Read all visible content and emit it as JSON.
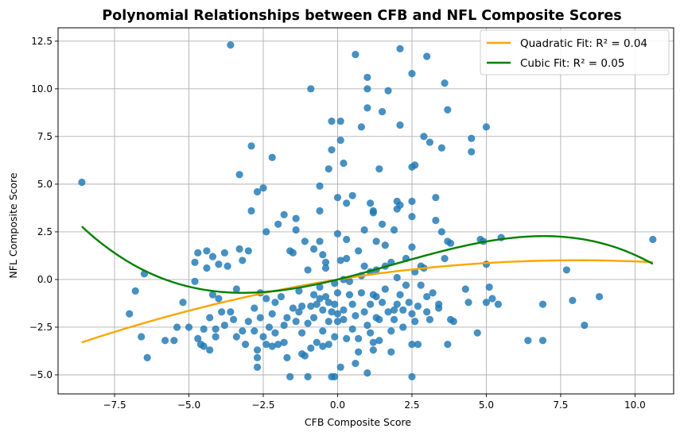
{
  "chart_data": {
    "type": "scatter",
    "title": "Polynomial Relationships between CFB and NFL Composite Scores",
    "xlabel": "CFB Composite Score",
    "ylabel": "NFL Composite Score",
    "xlim": [
      -9.4,
      11.3
    ],
    "ylim": [
      -6.0,
      13.2
    ],
    "xticks": [
      -7.5,
      -5.0,
      -2.5,
      0.0,
      2.5,
      5.0,
      7.5,
      10.0
    ],
    "xtick_labels": [
      "−7.5",
      "−5.0",
      "−2.5",
      "0.0",
      "2.5",
      "5.0",
      "7.5",
      "10.0"
    ],
    "yticks": [
      -5.0,
      -2.5,
      0.0,
      2.5,
      5.0,
      7.5,
      10.0,
      12.5
    ],
    "ytick_labels": [
      "−5.0",
      "−2.5",
      "0.0",
      "2.5",
      "5.0",
      "7.5",
      "10.0",
      "12.5"
    ],
    "grid": true,
    "legend_position": "top-right",
    "scatter_color": "#1f77b4",
    "points": [
      [
        -8.6,
        5.1
      ],
      [
        -7.0,
        -1.8
      ],
      [
        -6.8,
        -0.6
      ],
      [
        -6.6,
        -3.0
      ],
      [
        -6.5,
        0.3
      ],
      [
        -6.4,
        -4.1
      ],
      [
        -5.8,
        -3.2
      ],
      [
        -5.5,
        -3.2
      ],
      [
        -5.4,
        -2.5
      ],
      [
        -5.2,
        -1.2
      ],
      [
        -5.0,
        -2.5
      ],
      [
        -4.8,
        -0.1
      ],
      [
        -4.8,
        0.9
      ],
      [
        -4.7,
        1.4
      ],
      [
        -4.7,
        -3.1
      ],
      [
        -4.6,
        -3.4
      ],
      [
        -4.5,
        -2.6
      ],
      [
        -4.5,
        -3.5
      ],
      [
        -4.4,
        1.5
      ],
      [
        -4.4,
        0.6
      ],
      [
        -4.3,
        -3.7
      ],
      [
        -4.3,
        -2.0
      ],
      [
        -4.2,
        1.2
      ],
      [
        -4.2,
        -0.8
      ],
      [
        -4.1,
        -2.6
      ],
      [
        -4.1,
        -3.0
      ],
      [
        -4.0,
        0.8
      ],
      [
        -4.0,
        -1.0
      ],
      [
        -3.9,
        -1.7
      ],
      [
        -3.8,
        1.4
      ],
      [
        -3.8,
        -2.4
      ],
      [
        -3.7,
        0.7
      ],
      [
        -3.6,
        12.3
      ],
      [
        -3.6,
        -1.7
      ],
      [
        -3.5,
        -2.1
      ],
      [
        -3.4,
        -0.5
      ],
      [
        -3.4,
        -3.0
      ],
      [
        -3.3,
        1.6
      ],
      [
        -3.3,
        5.5
      ],
      [
        -3.2,
        1.0
      ],
      [
        -3.2,
        -2.7
      ],
      [
        -3.1,
        -3.4
      ],
      [
        -3.0,
        1.5
      ],
      [
        -3.0,
        -2.2
      ],
      [
        -2.9,
        7.0
      ],
      [
        -2.9,
        3.6
      ],
      [
        -2.8,
        -1.5
      ],
      [
        -2.8,
        -2.7
      ],
      [
        -2.7,
        4.6
      ],
      [
        -2.7,
        -3.7
      ],
      [
        -2.7,
        -4.1
      ],
      [
        -2.7,
        -4.6
      ],
      [
        -2.6,
        -0.7
      ],
      [
        -2.6,
        -2.0
      ],
      [
        -2.5,
        4.8
      ],
      [
        -2.5,
        -3.0
      ],
      [
        -2.4,
        2.5
      ],
      [
        -2.4,
        -1.0
      ],
      [
        -2.4,
        -3.4
      ],
      [
        -2.3,
        -2.5
      ],
      [
        -2.2,
        -1.8
      ],
      [
        -2.2,
        6.4
      ],
      [
        -2.2,
        -3.5
      ],
      [
        -2.1,
        -1.2
      ],
      [
        -2.1,
        -2.8
      ],
      [
        -2.0,
        -3.4
      ],
      [
        -2.0,
        2.9
      ],
      [
        -1.9,
        -0.9
      ],
      [
        -1.8,
        3.4
      ],
      [
        -1.8,
        -2.4
      ],
      [
        -1.8,
        -3.3
      ],
      [
        -1.7,
        -4.1
      ],
      [
        -1.7,
        -2.0
      ],
      [
        -1.6,
        1.5
      ],
      [
        -1.6,
        -5.1
      ],
      [
        -1.5,
        -1.5
      ],
      [
        -1.5,
        1.4
      ],
      [
        -1.4,
        -2.2
      ],
      [
        -1.4,
        2.6
      ],
      [
        -1.4,
        3.2
      ],
      [
        -1.3,
        -0.6
      ],
      [
        -1.3,
        -1.7
      ],
      [
        -1.2,
        -1.4
      ],
      [
        -1.2,
        -3.9
      ],
      [
        -1.2,
        -2.8
      ],
      [
        -1.1,
        2.0
      ],
      [
        -1.1,
        -4.0
      ],
      [
        -1.0,
        0.5
      ],
      [
        -1.0,
        -2.3
      ],
      [
        -1.0,
        -5.1
      ],
      [
        -0.9,
        10.0
      ],
      [
        -0.9,
        -1.4
      ],
      [
        -0.9,
        -3.6
      ],
      [
        -0.8,
        -0.8
      ],
      [
        -0.8,
        1.6
      ],
      [
        -0.8,
        -2.0
      ],
      [
        -0.7,
        -1.3
      ],
      [
        -0.7,
        -3.3
      ],
      [
        -0.6,
        -1.0
      ],
      [
        -0.6,
        -0.4
      ],
      [
        -0.6,
        3.6
      ],
      [
        -0.6,
        4.9
      ],
      [
        -0.6,
        2.0
      ],
      [
        -0.5,
        1.3
      ],
      [
        -0.5,
        -1.6
      ],
      [
        -0.5,
        -3.5
      ],
      [
        -0.5,
        -2.7
      ],
      [
        -0.4,
        0.9
      ],
      [
        -0.4,
        -0.9
      ],
      [
        -0.4,
        0.6
      ],
      [
        -0.3,
        -1.2
      ],
      [
        -0.3,
        -2.2
      ],
      [
        -0.3,
        5.8
      ],
      [
        -0.3,
        -3.4
      ],
      [
        -0.2,
        8.3
      ],
      [
        -0.2,
        6.8
      ],
      [
        -0.2,
        -1.7
      ],
      [
        -0.2,
        -5.1
      ],
      [
        -0.1,
        -0.2
      ],
      [
        -0.1,
        -1.3
      ],
      [
        -0.1,
        -3.0
      ],
      [
        -0.1,
        -5.1
      ],
      [
        0.0,
        4.3
      ],
      [
        0.0,
        -0.7
      ],
      [
        0.0,
        -1.8
      ],
      [
        0.0,
        2.4
      ],
      [
        0.0,
        -2.2
      ],
      [
        0.1,
        8.3
      ],
      [
        0.1,
        7.3
      ],
      [
        0.1,
        -4.6
      ],
      [
        0.1,
        1.0
      ],
      [
        0.2,
        6.1
      ],
      [
        0.2,
        -1.6
      ],
      [
        0.2,
        0.0
      ],
      [
        0.2,
        -2.1
      ],
      [
        0.3,
        -3.1
      ],
      [
        0.3,
        4.0
      ],
      [
        0.3,
        2.1
      ],
      [
        0.3,
        1.1
      ],
      [
        0.4,
        -0.1
      ],
      [
        0.4,
        -0.8
      ],
      [
        0.5,
        4.4
      ],
      [
        0.5,
        -1.3
      ],
      [
        0.5,
        -2.6
      ],
      [
        0.6,
        11.8
      ],
      [
        0.6,
        -1.9
      ],
      [
        0.6,
        -4.4
      ],
      [
        0.7,
        -3.8
      ],
      [
        0.7,
        -3.1
      ],
      [
        0.7,
        1.5
      ],
      [
        0.8,
        8.0
      ],
      [
        0.8,
        0.2
      ],
      [
        0.8,
        -0.7
      ],
      [
        0.9,
        0.7
      ],
      [
        0.9,
        2.6
      ],
      [
        0.9,
        -1.7
      ],
      [
        1.0,
        10.6
      ],
      [
        1.0,
        10.0
      ],
      [
        1.0,
        9.0
      ],
      [
        1.0,
        -2.4
      ],
      [
        1.0,
        -4.9
      ],
      [
        1.1,
        -1.3
      ],
      [
        1.1,
        0.4
      ],
      [
        1.1,
        4.0
      ],
      [
        1.1,
        -2.8
      ],
      [
        1.2,
        -3.3
      ],
      [
        1.2,
        3.5
      ],
      [
        1.2,
        3.6
      ],
      [
        1.2,
        -0.8
      ],
      [
        1.2,
        -3.7
      ],
      [
        1.3,
        0.5
      ],
      [
        1.3,
        2.0
      ],
      [
        1.3,
        -0.9
      ],
      [
        1.3,
        -2.0
      ],
      [
        1.4,
        -2.1
      ],
      [
        1.4,
        5.8
      ],
      [
        1.4,
        -3.2
      ],
      [
        1.5,
        2.9
      ],
      [
        1.5,
        8.8
      ],
      [
        1.5,
        -1.2
      ],
      [
        1.6,
        1.8
      ],
      [
        1.6,
        -0.5
      ],
      [
        1.6,
        0.7
      ],
      [
        1.7,
        9.9
      ],
      [
        1.7,
        -1.7
      ],
      [
        1.8,
        0.9
      ],
      [
        1.8,
        -2.7
      ],
      [
        1.8,
        -3.8
      ],
      [
        1.9,
        2.6
      ],
      [
        1.9,
        -1.6
      ],
      [
        1.9,
        -2.1
      ],
      [
        2.0,
        4.1
      ],
      [
        2.0,
        3.7
      ],
      [
        2.0,
        0.1
      ],
      [
        2.0,
        -1.3
      ],
      [
        2.1,
        12.1
      ],
      [
        2.1,
        8.1
      ],
      [
        2.1,
        3.9
      ],
      [
        2.1,
        -0.8
      ],
      [
        2.2,
        -1.6
      ],
      [
        2.2,
        -2.5
      ],
      [
        2.3,
        1.1
      ],
      [
        2.3,
        -0.3
      ],
      [
        2.4,
        -1.2
      ],
      [
        2.5,
        10.8
      ],
      [
        2.5,
        5.9
      ],
      [
        2.5,
        4.1
      ],
      [
        2.5,
        3.3
      ],
      [
        2.5,
        1.7
      ],
      [
        2.5,
        -1.8
      ],
      [
        2.5,
        -5.1
      ],
      [
        2.5,
        -3.4
      ],
      [
        2.6,
        6.0
      ],
      [
        2.6,
        0.4
      ],
      [
        2.6,
        -2.2
      ],
      [
        2.7,
        -1.4
      ],
      [
        2.7,
        -3.4
      ],
      [
        2.8,
        0.7
      ],
      [
        2.8,
        -0.3
      ],
      [
        2.9,
        7.5
      ],
      [
        2.9,
        0.6
      ],
      [
        3.0,
        11.7
      ],
      [
        3.0,
        -0.9
      ],
      [
        3.0,
        -1.7
      ],
      [
        3.1,
        7.2
      ],
      [
        3.1,
        -2.1
      ],
      [
        3.2,
        -0.7
      ],
      [
        3.3,
        3.1
      ],
      [
        3.3,
        4.3
      ],
      [
        3.4,
        -1.3
      ],
      [
        3.4,
        -1.5
      ],
      [
        3.5,
        6.9
      ],
      [
        3.5,
        2.5
      ],
      [
        3.6,
        10.3
      ],
      [
        3.6,
        1.1
      ],
      [
        3.7,
        -3.4
      ],
      [
        3.7,
        8.9
      ],
      [
        3.7,
        2.0
      ],
      [
        3.8,
        1.9
      ],
      [
        3.8,
        -2.1
      ],
      [
        3.9,
        -2.2
      ],
      [
        4.3,
        -0.5
      ],
      [
        4.4,
        -1.2
      ],
      [
        4.5,
        7.4
      ],
      [
        4.5,
        6.7
      ],
      [
        4.7,
        -2.8
      ],
      [
        4.8,
        2.1
      ],
      [
        4.9,
        2.0
      ],
      [
        5.0,
        0.8
      ],
      [
        5.0,
        8.0
      ],
      [
        5.0,
        -1.2
      ],
      [
        5.1,
        -0.4
      ],
      [
        5.2,
        -1.0
      ],
      [
        5.4,
        -1.3
      ],
      [
        5.5,
        2.2
      ],
      [
        6.4,
        -3.2
      ],
      [
        6.9,
        -3.2
      ],
      [
        6.9,
        -1.3
      ],
      [
        7.7,
        0.5
      ],
      [
        7.9,
        -1.1
      ],
      [
        8.3,
        -2.4
      ],
      [
        8.8,
        -0.9
      ],
      [
        10.6,
        2.1
      ]
    ],
    "series": [
      {
        "name": "Quadratic Fit: R² = 0.04",
        "color": "#ffa500",
        "kind": "poly",
        "coefficients": [
          0.0,
          0.25,
          -0.0155
        ],
        "x_range": [
          -8.6,
          10.6
        ]
      },
      {
        "name": "Cubic Fit: R² = 0.05",
        "color": "#008000",
        "kind": "poly",
        "coefficients": [
          0.0,
          0.3805,
          0.03232,
          -0.00575
        ],
        "x_range": [
          -8.6,
          10.6
        ]
      }
    ]
  }
}
